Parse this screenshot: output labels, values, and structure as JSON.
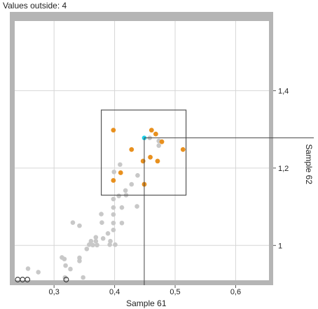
{
  "status": {
    "values_outside_label": "Values outside: 4"
  },
  "colors": {
    "frame": "#b5b5b5",
    "grid": "#d6d6d6",
    "point_default": "#c8c8c8",
    "point_selected": "#e8901e",
    "point_focus": "#22d0e8",
    "box": "#555555",
    "crosshair": "#444444"
  },
  "chart_data": {
    "type": "scatter",
    "xlabel": "Sample 61",
    "ylabel": "Sample 62",
    "xlim": [
      0.235,
      0.655
    ],
    "ylim": [
      0.91,
      1.58
    ],
    "x_ticks": [
      {
        "value": 0.3,
        "label": "0,3"
      },
      {
        "value": 0.4,
        "label": "0,4"
      },
      {
        "value": 0.5,
        "label": "0,5"
      },
      {
        "value": 0.6,
        "label": "0,6"
      }
    ],
    "y_ticks": [
      {
        "value": 1.0,
        "label": "1"
      },
      {
        "value": 1.2,
        "label": "1,2"
      },
      {
        "value": 1.4,
        "label": "1,4"
      }
    ],
    "grid": true,
    "selection_box": {
      "x": [
        0.378,
        0.518
      ],
      "y": [
        1.13,
        1.35
      ]
    },
    "crosshair": {
      "x": 0.449,
      "y": 1.278
    },
    "focus_point": {
      "x": 0.449,
      "y": 1.278
    },
    "selected_points": [
      [
        0.398,
        1.298
      ],
      [
        0.398,
        1.168
      ],
      [
        0.41,
        1.188
      ],
      [
        0.428,
        1.248
      ],
      [
        0.447,
        1.218
      ],
      [
        0.449,
        1.158
      ],
      [
        0.459,
        1.228
      ],
      [
        0.461,
        1.298
      ],
      [
        0.468,
        1.288
      ],
      [
        0.471,
        1.218
      ],
      [
        0.478,
        1.268
      ],
      [
        0.513,
        1.248
      ]
    ],
    "other_points": [
      [
        0.257,
        0.94
      ],
      [
        0.274,
        0.931
      ],
      [
        0.313,
        0.969
      ],
      [
        0.317,
        0.965
      ],
      [
        0.319,
        0.948
      ],
      [
        0.327,
        0.939
      ],
      [
        0.331,
        1.059
      ],
      [
        0.342,
        1.051
      ],
      [
        0.342,
        0.968
      ],
      [
        0.342,
        0.96
      ],
      [
        0.354,
        0.991
      ],
      [
        0.358,
        1.002
      ],
      [
        0.361,
        1.011
      ],
      [
        0.364,
        1.001
      ],
      [
        0.369,
        1.021
      ],
      [
        0.371,
        1.001
      ],
      [
        0.369,
        1.011
      ],
      [
        0.378,
        1.081
      ],
      [
        0.379,
        1.059
      ],
      [
        0.381,
        1.018
      ],
      [
        0.389,
        1.031
      ],
      [
        0.393,
        1.011
      ],
      [
        0.392,
        1.002
      ],
      [
        0.398,
        1.08
      ],
      [
        0.398,
        1.098
      ],
      [
        0.398,
        1.12
      ],
      [
        0.398,
        1.058
      ],
      [
        0.398,
        1.04
      ],
      [
        0.399,
        1.19
      ],
      [
        0.401,
        1.002
      ],
      [
        0.407,
        1.128
      ],
      [
        0.409,
        1.209
      ],
      [
        0.412,
        1.098
      ],
      [
        0.412,
        1.058
      ],
      [
        0.418,
        1.142
      ],
      [
        0.419,
        1.13
      ],
      [
        0.428,
        1.158
      ],
      [
        0.437,
        1.101
      ],
      [
        0.438,
        1.181
      ],
      [
        0.458,
        1.278
      ],
      [
        0.473,
        1.258
      ],
      [
        0.473,
        1.27
      ],
      [
        0.318,
        0.913
      ],
      [
        0.348,
        0.911
      ]
    ],
    "outside_points": [
      [
        0.24,
        0.915
      ],
      [
        0.248,
        0.915
      ],
      [
        0.256,
        0.915
      ],
      [
        0.32,
        0.915
      ]
    ]
  }
}
